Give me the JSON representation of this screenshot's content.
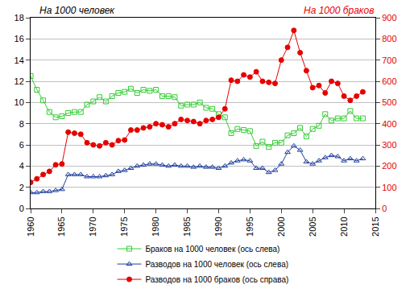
{
  "chart_data": {
    "type": "line",
    "y_label": "На 1000 человек",
    "y2_label": "На 1000 браков",
    "x": [
      1960,
      1961,
      1962,
      1963,
      1964,
      1965,
      1966,
      1967,
      1968,
      1969,
      1970,
      1971,
      1972,
      1973,
      1974,
      1975,
      1976,
      1977,
      1978,
      1979,
      1980,
      1981,
      1982,
      1983,
      1984,
      1985,
      1986,
      1987,
      1988,
      1989,
      1990,
      1991,
      1992,
      1993,
      1994,
      1995,
      1996,
      1997,
      1998,
      1999,
      2000,
      2001,
      2002,
      2003,
      2004,
      2005,
      2006,
      2007,
      2008,
      2009,
      2010,
      2011,
      2012,
      2013
    ],
    "xlim": [
      1960,
      2015
    ],
    "xticks": [
      1960,
      1965,
      1970,
      1975,
      1980,
      1985,
      1990,
      1995,
      2000,
      2005,
      2010,
      2015
    ],
    "ylim": [
      0,
      18
    ],
    "yticks": [
      0,
      2,
      4,
      6,
      8,
      10,
      12,
      14,
      16,
      18
    ],
    "y2lim": [
      0,
      900
    ],
    "y2ticks": [
      0,
      100,
      200,
      300,
      400,
      500,
      600,
      700,
      800,
      900
    ],
    "grid": true,
    "legend": "bottom",
    "series": [
      {
        "name": "Браков на 1000 человек (ось слева)",
        "color": "#33cc33",
        "marker": "square-open",
        "values": [
          12.5,
          11.2,
          10.2,
          9.1,
          8.6,
          8.7,
          9.0,
          9.1,
          9.1,
          9.8,
          10.1,
          10.5,
          10.1,
          10.6,
          10.9,
          11.0,
          11.3,
          10.9,
          11.2,
          11.1,
          11.2,
          10.6,
          10.6,
          10.5,
          9.7,
          9.8,
          9.8,
          10.0,
          9.5,
          9.4,
          8.9,
          8.6,
          7.1,
          7.5,
          7.4,
          7.3,
          5.9,
          6.3,
          5.8,
          6.2,
          6.2,
          6.9,
          7.1,
          7.6,
          6.8,
          7.5,
          7.8,
          8.9,
          8.3,
          8.5,
          8.5,
          9.2,
          8.5,
          8.5
        ]
      },
      {
        "name": "Разводов на 1000 человек (ось слева)",
        "color": "#1f3fa0",
        "marker": "triangle-up-open",
        "values": [
          1.5,
          1.5,
          1.6,
          1.6,
          1.7,
          1.8,
          3.2,
          3.2,
          3.2,
          3.0,
          3.0,
          3.0,
          3.1,
          3.2,
          3.5,
          3.6,
          3.8,
          4.0,
          4.1,
          4.2,
          4.2,
          4.1,
          4.0,
          4.1,
          4.0,
          4.0,
          3.9,
          4.0,
          3.9,
          3.9,
          3.8,
          4.0,
          4.3,
          4.5,
          4.6,
          4.5,
          3.8,
          3.8,
          3.4,
          3.6,
          4.2,
          5.3,
          5.9,
          5.5,
          4.4,
          4.2,
          4.5,
          4.8,
          5.0,
          4.9,
          4.5,
          4.7,
          4.5,
          4.7
        ]
      },
      {
        "name": "Разводов на 1000 браков (ось справа)",
        "color": "#e60000",
        "marker": "circle",
        "axis": "y2",
        "values": [
          123,
          140,
          160,
          175,
          206,
          210,
          360,
          355,
          350,
          310,
          300,
          295,
          310,
          300,
          320,
          323,
          370,
          370,
          380,
          385,
          400,
          395,
          385,
          400,
          420,
          415,
          410,
          400,
          415,
          420,
          430,
          470,
          605,
          600,
          630,
          620,
          645,
          600,
          595,
          590,
          700,
          760,
          840,
          735,
          650,
          570,
          580,
          545,
          600,
          590,
          530,
          510,
          530,
          550
        ]
      }
    ]
  }
}
